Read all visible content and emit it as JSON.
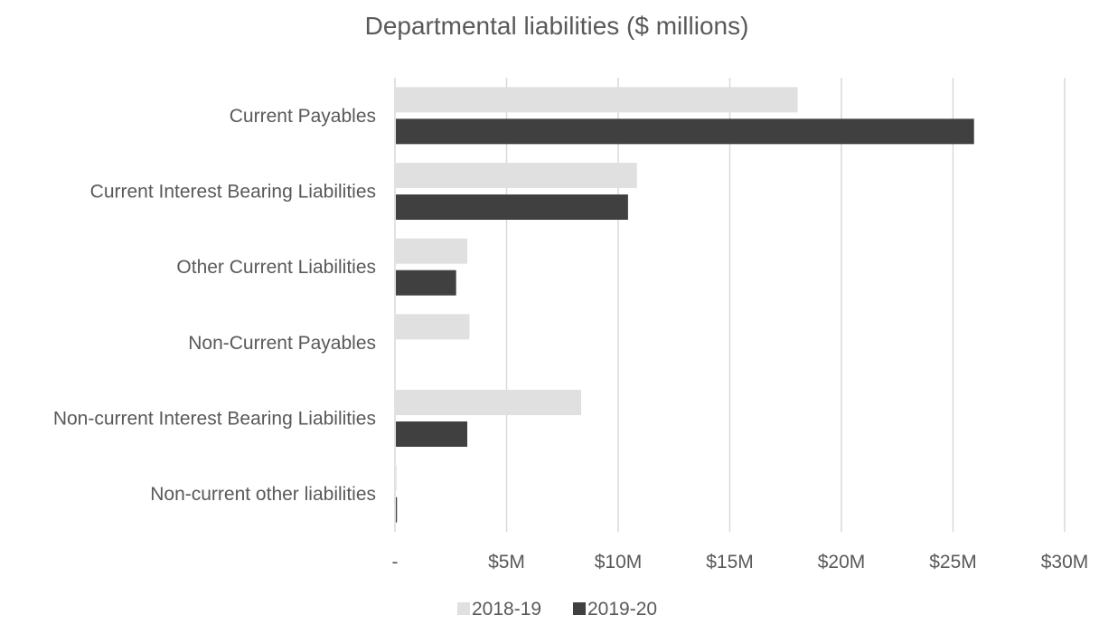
{
  "chart_data": {
    "type": "bar",
    "orientation": "horizontal",
    "title": "Departmental liabilities ($ millions)",
    "categories": [
      "Current Payables",
      "Current Interest Bearing Liabilities",
      "Other Current Liabilities",
      "Non-Current Payables",
      "Non-current Interest Bearing Liabilities",
      "Non-current other liabilities"
    ],
    "series": [
      {
        "name": "2018-19",
        "color": "#e0e0e0",
        "values": [
          18.0,
          10.8,
          3.2,
          3.3,
          8.3,
          0.03
        ]
      },
      {
        "name": "2019-20",
        "color": "#404040",
        "values": [
          25.9,
          10.4,
          2.7,
          0.0,
          3.2,
          0.05
        ]
      }
    ],
    "xlim": [
      0,
      30
    ],
    "x_ticks": [
      0,
      5,
      10,
      15,
      20,
      25,
      30
    ],
    "x_tick_labels": [
      "-",
      "$5M",
      "$10M",
      "$15M",
      "$20M",
      "$25M",
      "$30M"
    ],
    "grid": true,
    "legend_position": "bottom",
    "colors": {
      "gridline": "#d9d9d9",
      "text": "#595959"
    }
  }
}
